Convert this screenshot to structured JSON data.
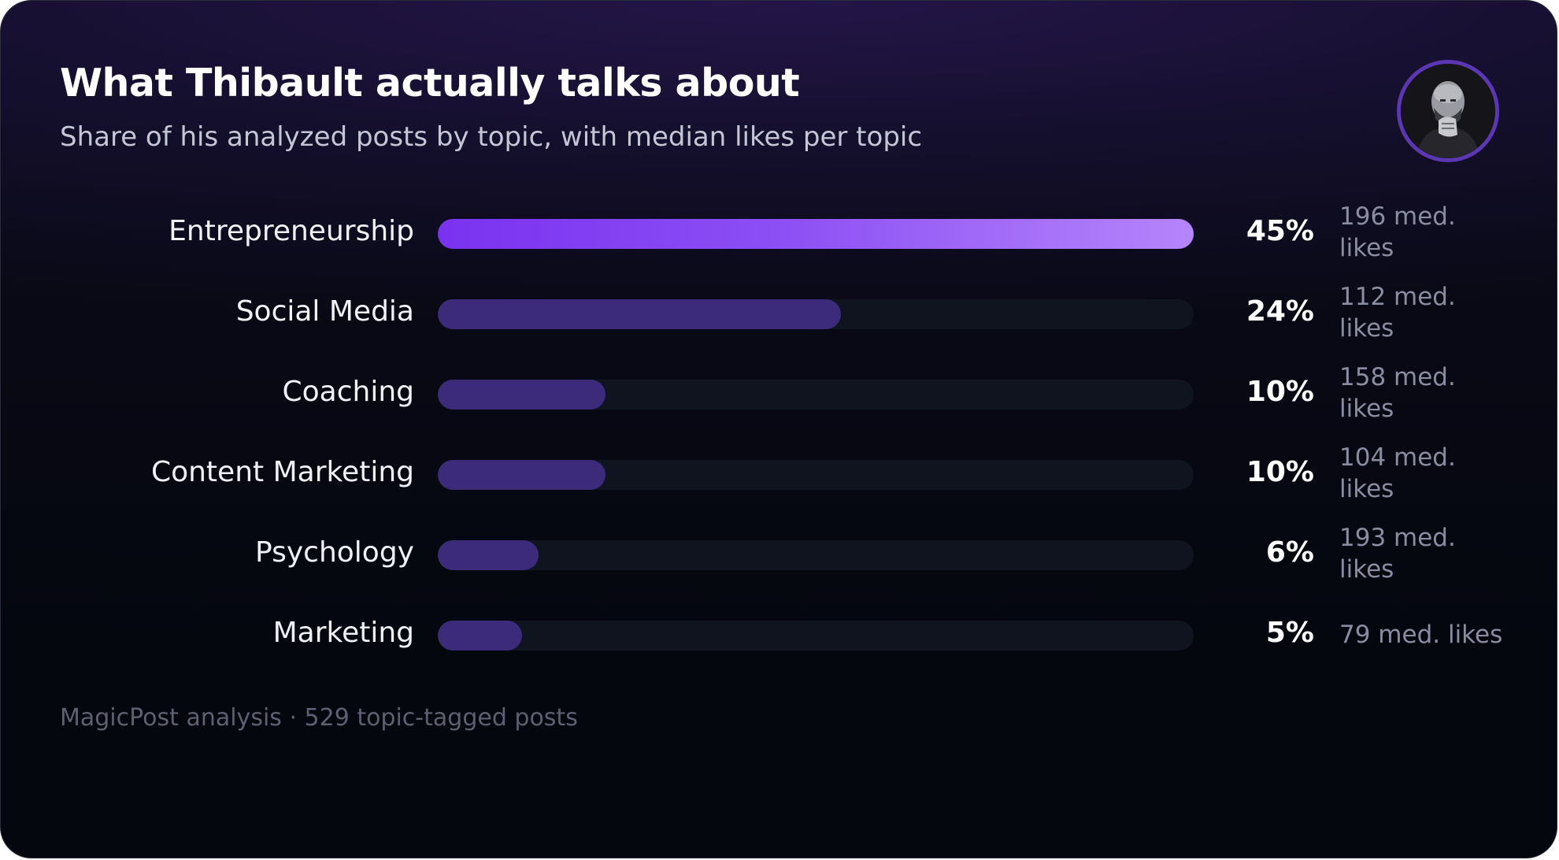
{
  "header": {
    "title": "What Thibault actually talks about",
    "subtitle": "Share of his analyzed posts by topic, with median likes per topic"
  },
  "footer": {
    "source": "MagicPost analysis · 529 topic-tagged posts"
  },
  "colors": {
    "top_bar_gradient": [
      "#7a32f0",
      "#b585fb"
    ],
    "bar": "#3c2a7a",
    "track": "#10141f",
    "avatar_ring": "#5b37b3"
  },
  "chart_data": {
    "type": "bar",
    "orientation": "horizontal",
    "categories": [
      "Entrepreneurship",
      "Social Media",
      "Coaching",
      "Content Marketing",
      "Psychology",
      "Marketing"
    ],
    "values": [
      45,
      24,
      10,
      10,
      6,
      5
    ],
    "value_labels": [
      "45%",
      "24%",
      "10%",
      "10%",
      "6%",
      "5%"
    ],
    "median_likes_labels": [
      "196 med. likes",
      "112 med. likes",
      "158 med. likes",
      "104 med. likes",
      "193 med. likes",
      "79 med. likes"
    ],
    "median_likes": [
      196,
      112,
      158,
      104,
      193,
      79
    ],
    "xlim": [
      0,
      45
    ],
    "grid": false,
    "legend": "none"
  }
}
